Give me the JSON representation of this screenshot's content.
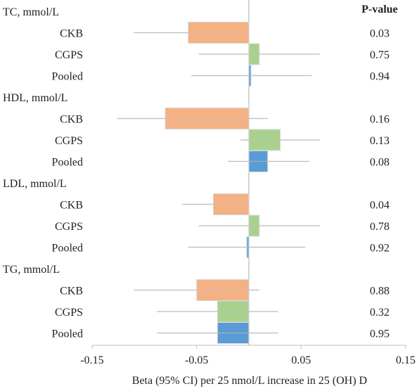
{
  "chart_data": {
    "type": "bar",
    "orientation": "horizontal",
    "xlabel": "Beta (95% CI) per 25 nmol/L increase in 25 (OH) D",
    "xlim": [
      -0.15,
      0.15
    ],
    "xticks": [
      -0.15,
      -0.05,
      0.05,
      0.15
    ],
    "xtick_labels": [
      "-0.15",
      "-0.05",
      "0.05",
      "0.15"
    ],
    "pvalue_header": "P-value",
    "grid": false,
    "colors": {
      "CKB": "#f4b183",
      "CGPS": "#a9d18e",
      "Pooled": "#5b9bd5",
      "whisker": "#bfbfbf",
      "zero_line": "#bfbfbf"
    },
    "groups": [
      {
        "label": "TC, mmol/L",
        "rows": [
          {
            "study": "CKB",
            "beta": -0.058,
            "ci": [
              -0.11,
              0.0
            ],
            "p": "0.03"
          },
          {
            "study": "CGPS",
            "beta": 0.01,
            "ci": [
              -0.048,
              0.068
            ],
            "p": "0.75"
          },
          {
            "study": "Pooled",
            "beta": 0.002,
            "ci": [
              -0.055,
              0.06
            ],
            "p": "0.94"
          }
        ]
      },
      {
        "label": "HDL, mmol/L",
        "rows": [
          {
            "study": "CKB",
            "beta": -0.08,
            "ci": [
              -0.126,
              0.018
            ],
            "p": "0.16"
          },
          {
            "study": "CGPS",
            "beta": 0.03,
            "ci": [
              -0.008,
              0.068
            ],
            "p": "0.13"
          },
          {
            "study": "Pooled",
            "beta": 0.018,
            "ci": [
              -0.02,
              0.058
            ],
            "p": "0.08"
          }
        ]
      },
      {
        "label": "LDL, mmol/L",
        "rows": [
          {
            "study": "CKB",
            "beta": -0.034,
            "ci": [
              -0.064,
              0.0
            ],
            "p": "0.04"
          },
          {
            "study": "CGPS",
            "beta": 0.01,
            "ci": [
              -0.048,
              0.068
            ],
            "p": "0.78"
          },
          {
            "study": "Pooled",
            "beta": -0.002,
            "ci": [
              -0.058,
              0.054
            ],
            "p": "0.92"
          }
        ]
      },
      {
        "label": "TG, mmol/L",
        "rows": [
          {
            "study": "CKB",
            "beta": -0.05,
            "ci": [
              -0.11,
              0.01
            ],
            "p": "0.88"
          },
          {
            "study": "CGPS",
            "beta": -0.03,
            "ci": [
              -0.088,
              0.028
            ],
            "p": "0.32"
          },
          {
            "study": "Pooled",
            "beta": -0.03,
            "ci": [
              -0.088,
              0.028
            ],
            "p": "0.95"
          }
        ]
      }
    ]
  }
}
